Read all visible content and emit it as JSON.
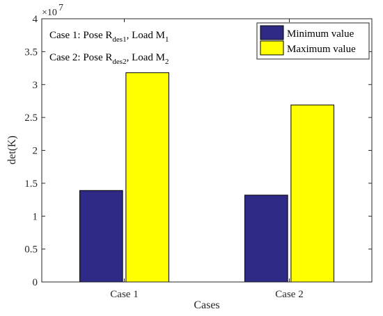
{
  "chart_data": {
    "type": "bar",
    "categories": [
      "Case 1",
      "Case 2"
    ],
    "series": [
      {
        "name": "Minimum value",
        "values": [
          13900000,
          13200000
        ],
        "color": "#2e2a85"
      },
      {
        "name": "Maximum value",
        "values": [
          31800000,
          26900000
        ],
        "color": "#ffff00"
      }
    ],
    "xlabel": "Cases",
    "ylabel": "det(K)",
    "ylim": [
      0,
      40000000
    ],
    "yticks": [
      0,
      5000000,
      10000000,
      15000000,
      20000000,
      25000000,
      30000000,
      35000000,
      40000000
    ],
    "ytick_labels": [
      "0",
      "0.5",
      "1",
      "1.5",
      "2",
      "2.5",
      "3",
      "3.5",
      "4"
    ],
    "y_exponent": {
      "base": "×10",
      "power": "7"
    },
    "grid": false,
    "legend_position": "top-right",
    "annotations": [
      {
        "prefix": "Case 1: Pose R",
        "sub1": "des1",
        "mid": ", Load M",
        "sub2": "1"
      },
      {
        "prefix": "Case 2: Pose R",
        "sub1": "des2",
        "mid": ", Load M",
        "sub2": "2"
      }
    ]
  }
}
